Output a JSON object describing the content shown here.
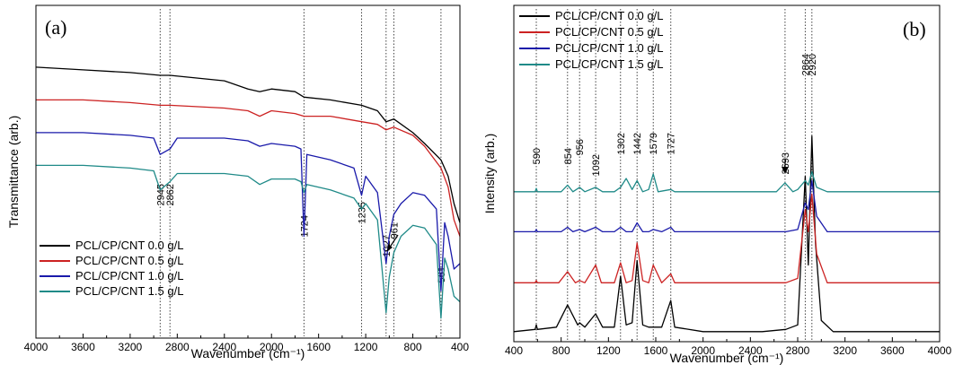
{
  "chart_data": [
    {
      "panel_label": "(a)",
      "type": "line",
      "xlabel": "Wavenumber (cm⁻¹)",
      "ylabel": "Transmittance (arb.)",
      "xlim": [
        4000,
        400
      ],
      "x_reversed": true,
      "xticks": [
        "4000",
        "3600",
        "3200",
        "2800",
        "2400",
        "2000",
        "1600",
        "1200",
        "800",
        "400"
      ],
      "legend_position": "bottom-left",
      "peaks": [
        {
          "label": "2945",
          "x": 2945
        },
        {
          "label": "2862",
          "x": 2862
        },
        {
          "label": "1724",
          "x": 1724
        },
        {
          "label": "1235",
          "x": 1235
        },
        {
          "label": "1027",
          "x": 1027
        },
        {
          "label": "961",
          "x": 961
        },
        {
          "label": "561",
          "x": 561
        }
      ],
      "series": [
        {
          "name": "PCL/CP/CNT 0.0 g/L",
          "color": "#000000",
          "points": [
            [
              4000,
              0.92
            ],
            [
              3600,
              0.91
            ],
            [
              3200,
              0.9
            ],
            [
              2945,
              0.89
            ],
            [
              2862,
              0.89
            ],
            [
              2400,
              0.87
            ],
            [
              2200,
              0.84
            ],
            [
              2100,
              0.83
            ],
            [
              2000,
              0.84
            ],
            [
              1800,
              0.83
            ],
            [
              1724,
              0.81
            ],
            [
              1500,
              0.8
            ],
            [
              1235,
              0.78
            ],
            [
              1100,
              0.76
            ],
            [
              1027,
              0.72
            ],
            [
              961,
              0.73
            ],
            [
              800,
              0.68
            ],
            [
              700,
              0.64
            ],
            [
              561,
              0.58
            ],
            [
              500,
              0.52
            ],
            [
              450,
              0.42
            ],
            [
              400,
              0.35
            ]
          ]
        },
        {
          "name": "PCL/CP/CNT 0.5 g/L",
          "color": "#cc2222",
          "points": [
            [
              4000,
              0.8
            ],
            [
              3600,
              0.8
            ],
            [
              3200,
              0.79
            ],
            [
              2945,
              0.78
            ],
            [
              2862,
              0.78
            ],
            [
              2400,
              0.77
            ],
            [
              2200,
              0.76
            ],
            [
              2100,
              0.74
            ],
            [
              2000,
              0.76
            ],
            [
              1800,
              0.75
            ],
            [
              1724,
              0.74
            ],
            [
              1500,
              0.74
            ],
            [
              1235,
              0.72
            ],
            [
              1100,
              0.71
            ],
            [
              1027,
              0.69
            ],
            [
              961,
              0.7
            ],
            [
              800,
              0.67
            ],
            [
              700,
              0.63
            ],
            [
              561,
              0.55
            ],
            [
              500,
              0.48
            ],
            [
              450,
              0.36
            ],
            [
              400,
              0.3
            ]
          ]
        },
        {
          "name": "PCL/CP/CNT 1.0 g/L",
          "color": "#1a1aaa",
          "points": [
            [
              4000,
              0.68
            ],
            [
              3600,
              0.68
            ],
            [
              3200,
              0.67
            ],
            [
              3000,
              0.66
            ],
            [
              2945,
              0.6
            ],
            [
              2862,
              0.62
            ],
            [
              2800,
              0.66
            ],
            [
              2400,
              0.66
            ],
            [
              2200,
              0.65
            ],
            [
              2100,
              0.63
            ],
            [
              2000,
              0.64
            ],
            [
              1800,
              0.63
            ],
            [
              1750,
              0.62
            ],
            [
              1724,
              0.3
            ],
            [
              1700,
              0.6
            ],
            [
              1500,
              0.58
            ],
            [
              1300,
              0.55
            ],
            [
              1235,
              0.45
            ],
            [
              1200,
              0.52
            ],
            [
              1100,
              0.46
            ],
            [
              1027,
              0.2
            ],
            [
              1000,
              0.3
            ],
            [
              961,
              0.38
            ],
            [
              900,
              0.42
            ],
            [
              800,
              0.46
            ],
            [
              700,
              0.45
            ],
            [
              600,
              0.4
            ],
            [
              561,
              0.1
            ],
            [
              530,
              0.35
            ],
            [
              500,
              0.3
            ],
            [
              450,
              0.18
            ],
            [
              400,
              0.2
            ]
          ]
        },
        {
          "name": "PCL/CP/CNT 1.5 g/L",
          "color": "#1f8a88",
          "points": [
            [
              4000,
              0.56
            ],
            [
              3600,
              0.56
            ],
            [
              3200,
              0.55
            ],
            [
              3000,
              0.54
            ],
            [
              2945,
              0.47
            ],
            [
              2862,
              0.5
            ],
            [
              2800,
              0.53
            ],
            [
              2400,
              0.53
            ],
            [
              2200,
              0.52
            ],
            [
              2100,
              0.49
            ],
            [
              2000,
              0.51
            ],
            [
              1800,
              0.51
            ],
            [
              1750,
              0.5
            ],
            [
              1724,
              0.46
            ],
            [
              1700,
              0.49
            ],
            [
              1500,
              0.47
            ],
            [
              1300,
              0.44
            ],
            [
              1235,
              0.4
            ],
            [
              1200,
              0.42
            ],
            [
              1100,
              0.36
            ],
            [
              1027,
              0.02
            ],
            [
              1000,
              0.15
            ],
            [
              961,
              0.24
            ],
            [
              900,
              0.3
            ],
            [
              800,
              0.34
            ],
            [
              700,
              0.33
            ],
            [
              600,
              0.27
            ],
            [
              561,
              0.0
            ],
            [
              530,
              0.22
            ],
            [
              500,
              0.18
            ],
            [
              450,
              0.08
            ],
            [
              400,
              0.06
            ]
          ]
        }
      ]
    },
    {
      "panel_label": "(b)",
      "type": "line",
      "xlabel": "Wavenumber (cm⁻¹)",
      "ylabel": "Intensity (arb.)",
      "xlim": [
        400,
        4000
      ],
      "xticks": [
        "400",
        "800",
        "1200",
        "1600",
        "2000",
        "2400",
        "2800",
        "3200",
        "3600",
        "4000"
      ],
      "legend_position": "top-left",
      "peaks": [
        {
          "label": "590",
          "x": 590
        },
        {
          "label": "854",
          "x": 854
        },
        {
          "label": "956",
          "x": 956
        },
        {
          "label": "1092",
          "x": 1092
        },
        {
          "label": "1302",
          "x": 1302
        },
        {
          "label": "1442",
          "x": 1442
        },
        {
          "label": "1579",
          "x": 1579
        },
        {
          "label": "1727",
          "x": 1727
        },
        {
          "label": "2693",
          "x": 2693
        },
        {
          "label": "2864",
          "x": 2864
        },
        {
          "label": "2920",
          "x": 2920
        }
      ],
      "series": [
        {
          "name": "PCL/CP/CNT 0.0 g/L",
          "color": "#000000",
          "points": [
            [
              400,
              0.0
            ],
            [
              580,
              0.01
            ],
            [
              590,
              0.03
            ],
            [
              600,
              0.01
            ],
            [
              760,
              0.02
            ],
            [
              854,
              0.12
            ],
            [
              940,
              0.03
            ],
            [
              956,
              0.04
            ],
            [
              1000,
              0.02
            ],
            [
              1092,
              0.08
            ],
            [
              1150,
              0.02
            ],
            [
              1250,
              0.02
            ],
            [
              1302,
              0.25
            ],
            [
              1350,
              0.03
            ],
            [
              1400,
              0.04
            ],
            [
              1442,
              0.32
            ],
            [
              1490,
              0.03
            ],
            [
              1540,
              0.02
            ],
            [
              1579,
              0.02
            ],
            [
              1650,
              0.02
            ],
            [
              1727,
              0.14
            ],
            [
              1760,
              0.02
            ],
            [
              2000,
              0.0
            ],
            [
              2500,
              0.0
            ],
            [
              2700,
              0.01
            ],
            [
              2800,
              0.03
            ],
            [
              2864,
              0.7
            ],
            [
              2890,
              0.3
            ],
            [
              2920,
              0.88
            ],
            [
              2950,
              0.4
            ],
            [
              3000,
              0.05
            ],
            [
              3100,
              0.0
            ],
            [
              4000,
              0.0
            ]
          ]
        },
        {
          "name": "PCL/CP/CNT 0.5 g/L",
          "color": "#cc2222",
          "points": [
            [
              400,
              0.22
            ],
            [
              580,
              0.22
            ],
            [
              590,
              0.23
            ],
            [
              600,
              0.22
            ],
            [
              780,
              0.22
            ],
            [
              854,
              0.27
            ],
            [
              920,
              0.22
            ],
            [
              956,
              0.23
            ],
            [
              1000,
              0.22
            ],
            [
              1092,
              0.3
            ],
            [
              1140,
              0.22
            ],
            [
              1250,
              0.22
            ],
            [
              1302,
              0.31
            ],
            [
              1350,
              0.22
            ],
            [
              1400,
              0.23
            ],
            [
              1442,
              0.4
            ],
            [
              1490,
              0.23
            ],
            [
              1540,
              0.22
            ],
            [
              1579,
              0.3
            ],
            [
              1650,
              0.22
            ],
            [
              1727,
              0.26
            ],
            [
              1760,
              0.22
            ],
            [
              2500,
              0.22
            ],
            [
              2700,
              0.22
            ],
            [
              2800,
              0.24
            ],
            [
              2864,
              0.55
            ],
            [
              2890,
              0.45
            ],
            [
              2920,
              0.62
            ],
            [
              2960,
              0.35
            ],
            [
              3050,
              0.22
            ],
            [
              4000,
              0.22
            ]
          ]
        },
        {
          "name": "PCL/CP/CNT 1.0 g/L",
          "color": "#1a1aaa",
          "points": [
            [
              400,
              0.45
            ],
            [
              580,
              0.45
            ],
            [
              590,
              0.46
            ],
            [
              600,
              0.45
            ],
            [
              800,
              0.45
            ],
            [
              854,
              0.47
            ],
            [
              900,
              0.45
            ],
            [
              956,
              0.46
            ],
            [
              1000,
              0.45
            ],
            [
              1092,
              0.47
            ],
            [
              1150,
              0.45
            ],
            [
              1250,
              0.45
            ],
            [
              1302,
              0.47
            ],
            [
              1350,
              0.45
            ],
            [
              1400,
              0.45
            ],
            [
              1442,
              0.49
            ],
            [
              1490,
              0.45
            ],
            [
              1540,
              0.45
            ],
            [
              1579,
              0.46
            ],
            [
              1650,
              0.45
            ],
            [
              1727,
              0.47
            ],
            [
              1760,
              0.45
            ],
            [
              2500,
              0.45
            ],
            [
              2700,
              0.45
            ],
            [
              2800,
              0.46
            ],
            [
              2864,
              0.58
            ],
            [
              2890,
              0.55
            ],
            [
              2920,
              0.68
            ],
            [
              2960,
              0.52
            ],
            [
              3050,
              0.45
            ],
            [
              4000,
              0.45
            ]
          ]
        },
        {
          "name": "PCL/CP/CNT 1.5 g/L",
          "color": "#1f8a88",
          "points": [
            [
              400,
              0.63
            ],
            [
              580,
              0.63
            ],
            [
              590,
              0.645
            ],
            [
              600,
              0.63
            ],
            [
              800,
              0.63
            ],
            [
              854,
              0.66
            ],
            [
              900,
              0.63
            ],
            [
              956,
              0.65
            ],
            [
              1000,
              0.63
            ],
            [
              1092,
              0.65
            ],
            [
              1150,
              0.63
            ],
            [
              1250,
              0.63
            ],
            [
              1302,
              0.65
            ],
            [
              1350,
              0.69
            ],
            [
              1400,
              0.64
            ],
            [
              1442,
              0.68
            ],
            [
              1490,
              0.63
            ],
            [
              1540,
              0.64
            ],
            [
              1579,
              0.71
            ],
            [
              1620,
              0.63
            ],
            [
              1727,
              0.64
            ],
            [
              1760,
              0.63
            ],
            [
              2500,
              0.63
            ],
            [
              2620,
              0.63
            ],
            [
              2693,
              0.67
            ],
            [
              2760,
              0.63
            ],
            [
              2800,
              0.64
            ],
            [
              2864,
              0.68
            ],
            [
              2890,
              0.66
            ],
            [
              2920,
              0.72
            ],
            [
              2960,
              0.65
            ],
            [
              3050,
              0.63
            ],
            [
              4000,
              0.63
            ]
          ]
        }
      ]
    }
  ]
}
